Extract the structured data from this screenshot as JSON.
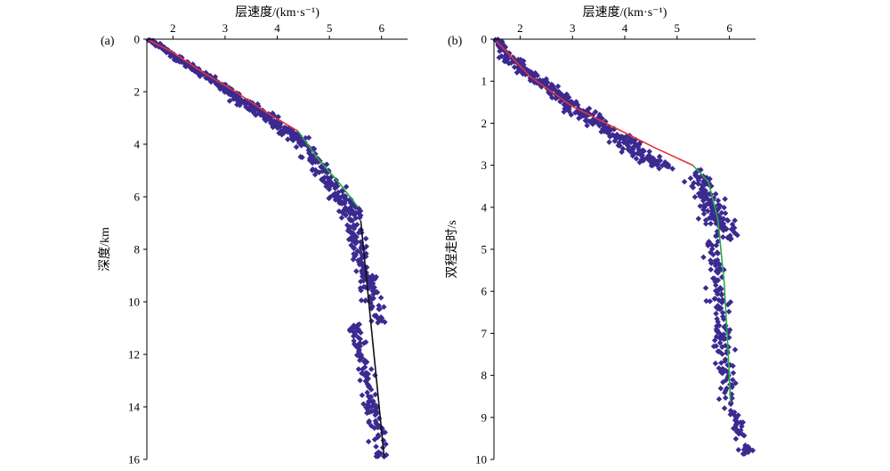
{
  "chart_data": [
    {
      "type": "scatter",
      "panel_label": "(a)",
      "xlabel": "层速度/(km·s⁻¹)",
      "ylabel": "深度/km",
      "x_axis_position": "top",
      "y_axis_inverted": true,
      "xlim": [
        1.5,
        6.5
      ],
      "ylim": [
        0,
        16
      ],
      "x_ticks": [
        2,
        3,
        4,
        5,
        6
      ],
      "y_ticks": [
        0,
        2,
        4,
        6,
        8,
        10,
        12,
        14,
        16
      ],
      "grid": false,
      "legend": "none",
      "colors": {
        "points": "#3b2a8f",
        "trend_shallow": "#e8313a",
        "trend_middle": "#2aa84a",
        "trend_deep": "#111111"
      },
      "trend_lines": [
        {
          "color": "#e8313a",
          "points": [
            [
              1.55,
              0.05
            ],
            [
              2.0,
              0.5
            ],
            [
              2.6,
              1.3
            ],
            [
              3.2,
              2.0
            ],
            [
              3.8,
              2.8
            ],
            [
              4.4,
              3.5
            ]
          ]
        },
        {
          "color": "#2aa84a",
          "points": [
            [
              4.4,
              3.5
            ],
            [
              4.8,
              4.6
            ],
            [
              5.2,
              5.5
            ],
            [
              5.55,
              6.4
            ]
          ]
        },
        {
          "color": "#111111",
          "points": [
            [
              5.6,
              6.9
            ],
            [
              6.05,
              15.9
            ]
          ]
        }
      ],
      "scatter_clouds": [
        {
          "y_range": [
            0.0,
            0.6
          ],
          "x_center": [
            1.55,
            2.0
          ],
          "spread": 0.12,
          "count": 60
        },
        {
          "y_range": [
            0.6,
            2.0
          ],
          "x_center": [
            2.0,
            3.1
          ],
          "spread": 0.18,
          "count": 140
        },
        {
          "y_range": [
            2.0,
            3.8
          ],
          "x_center": [
            3.1,
            4.4
          ],
          "spread": 0.35,
          "count": 160
        },
        {
          "y_range": [
            3.8,
            6.8
          ],
          "x_center": [
            4.4,
            5.5
          ],
          "spread": 0.35,
          "count": 140
        },
        {
          "y_range": [
            6.8,
            10.8
          ],
          "x_center": [
            5.4,
            5.95
          ],
          "spread": 0.28,
          "count": 140
        },
        {
          "y_range": [
            10.8,
            15.9
          ],
          "x_center": [
            5.5,
            6.0
          ],
          "spread": 0.25,
          "count": 120
        }
      ]
    },
    {
      "type": "scatter",
      "panel_label": "(b)",
      "xlabel": "层速度/(km·s⁻¹)",
      "ylabel": "双程走时/s",
      "x_axis_position": "top",
      "y_axis_inverted": true,
      "xlim": [
        1.5,
        6.5
      ],
      "ylim": [
        0,
        10
      ],
      "x_ticks": [
        2,
        3,
        4,
        5,
        6
      ],
      "y_ticks": [
        0,
        1,
        2,
        3,
        4,
        5,
        6,
        7,
        8,
        9,
        10
      ],
      "grid": false,
      "legend": "none",
      "colors": {
        "points": "#3b2a8f",
        "trend_shallow": "#e8313a",
        "trend_deep": "#2aa84a"
      },
      "trend_lines": [
        {
          "color": "#e8313a",
          "points": [
            [
              1.55,
              0.05
            ],
            [
              2.2,
              0.9
            ],
            [
              3.0,
              1.6
            ],
            [
              3.8,
              2.1
            ],
            [
              4.6,
              2.6
            ],
            [
              5.3,
              3.0
            ]
          ]
        },
        {
          "color": "#2aa84a",
          "points": [
            [
              5.3,
              3.0
            ],
            [
              5.6,
              3.4
            ],
            [
              5.78,
              4.3
            ],
            [
              5.9,
              5.8
            ],
            [
              5.97,
              7.3
            ],
            [
              6.02,
              8.65
            ]
          ]
        }
      ],
      "scatter_clouds": [
        {
          "y_range": [
            0.0,
            0.4
          ],
          "x_center": [
            1.55,
            1.75
          ],
          "spread": 0.12,
          "count": 40
        },
        {
          "y_range": [
            0.4,
            1.6
          ],
          "x_center": [
            1.75,
            3.0
          ],
          "spread": 0.3,
          "count": 150
        },
        {
          "y_range": [
            1.6,
            3.1
          ],
          "x_center": [
            3.0,
            4.8
          ],
          "spread": 0.5,
          "count": 170
        },
        {
          "y_range": [
            3.1,
            4.8
          ],
          "x_center": [
            5.3,
            6.0
          ],
          "spread": 0.45,
          "count": 150
        },
        {
          "y_range": [
            4.8,
            8.8
          ],
          "x_center": [
            5.7,
            6.0
          ],
          "spread": 0.3,
          "count": 140
        },
        {
          "y_range": [
            8.8,
            9.9
          ],
          "x_center": [
            6.05,
            6.35
          ],
          "spread": 0.22,
          "count": 40
        }
      ]
    }
  ]
}
